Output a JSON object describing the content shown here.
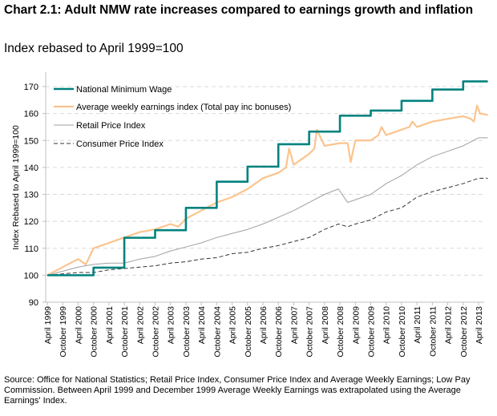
{
  "title": "Chart 2.1:  Adult NMW rate increases compared to earnings growth and inflation",
  "subtitle": "Index rebased to April 1999=100",
  "source": "Source:  Office for National Statistics; Retail Price Index, Consumer Price Index and Average Weekly Earnings; Low Pay Commission. Between April 1999 and December 1999 Average Weekly Earnings was extrapolated using the Average Earnings' Index.",
  "chart_data": {
    "type": "line",
    "ylabel": "Index Rebased to April 1999=100",
    "xlabel": "",
    "ylim": [
      90,
      175
    ],
    "yticks": [
      90,
      100,
      110,
      120,
      130,
      140,
      150,
      160,
      170
    ],
    "grid": "horizontal dashed",
    "legend_position": "top-left",
    "x_labels": [
      "April 1999",
      "October 1999",
      "April 2000",
      "October 2000",
      "April 2001",
      "October 2001",
      "April 2002",
      "October 2002",
      "April 2003",
      "October 2003",
      "April 2004",
      "October 2004",
      "April 2005",
      "October 2005",
      "April 2006",
      "October 2006",
      "April 2007",
      "October 2007",
      "April 2008",
      "October 2008",
      "April 2009",
      "October 2009",
      "April 2010",
      "October 2010",
      "April 2011",
      "October 2011",
      "April 2012",
      "October 2012",
      "April 2013"
    ],
    "x_range": [
      1999.25,
      2013.55
    ],
    "series": [
      {
        "name": "National Minimum Wage",
        "color": "#00827f",
        "style": "step",
        "x": [
          1999.25,
          2000.75,
          2001.75,
          2002.75,
          2003.75,
          2004.75,
          2005.75,
          2006.75,
          2007.75,
          2008.75,
          2009.75,
          2010.75,
          2011.75,
          2012.75,
          2013.55
        ],
        "values": [
          100,
          102.8,
          113.9,
          116.7,
          125,
          134.7,
          140.3,
          148.6,
          153.3,
          159.2,
          161.1,
          164.7,
          168.9,
          171.9,
          171.9
        ]
      },
      {
        "name": "Average weekly earnings index (Total pay inc bonuses)",
        "color": "#fbc48e",
        "style": "solid",
        "x": [
          1999.25,
          1999.75,
          2000.25,
          2000.5,
          2000.75,
          2001.25,
          2001.75,
          2002.25,
          2002.75,
          2003.25,
          2003.5,
          2003.75,
          2004.25,
          2004.75,
          2005.25,
          2005.75,
          2006.25,
          2006.75,
          2007.0,
          2007.1,
          2007.25,
          2007.75,
          2007.92,
          2008.0,
          2008.25,
          2008.75,
          2009.0,
          2009.1,
          2009.25,
          2009.75,
          2010.0,
          2010.1,
          2010.25,
          2010.75,
          2011.0,
          2011.1,
          2011.25,
          2011.75,
          2012.25,
          2012.75,
          2013.0,
          2013.1,
          2013.2,
          2013.3,
          2013.55
        ],
        "values": [
          100,
          103,
          106,
          104,
          110,
          112,
          114,
          116,
          117,
          119,
          118,
          121,
          124,
          127,
          129,
          132,
          136,
          138,
          140,
          147,
          141,
          145,
          147,
          154,
          148,
          149,
          149,
          142,
          150,
          150,
          152,
          155,
          152,
          154,
          155,
          157,
          155,
          157,
          158,
          159,
          158,
          157,
          163,
          160,
          159.5
        ]
      },
      {
        "name": "Retail Price Index",
        "color": "#a0a0a0",
        "style": "solid",
        "x": [
          1999.25,
          1999.75,
          2000.25,
          2000.75,
          2001.25,
          2001.75,
          2002.25,
          2002.75,
          2003.25,
          2003.75,
          2004.25,
          2004.75,
          2005.25,
          2005.75,
          2006.25,
          2006.75,
          2007.25,
          2007.75,
          2008.25,
          2008.7,
          2009.0,
          2009.25,
          2009.75,
          2010.25,
          2010.75,
          2011.25,
          2011.75,
          2012.25,
          2012.75,
          2013.25,
          2013.55
        ],
        "values": [
          100,
          101.5,
          103,
          104,
          104.5,
          104.5,
          106,
          107,
          109,
          110.5,
          112,
          114,
          115.5,
          117,
          119,
          121.5,
          124,
          127,
          130,
          132,
          127,
          128,
          130,
          134,
          137,
          141,
          144,
          146,
          148,
          151,
          151
        ]
      },
      {
        "name": "Consumer Price Index",
        "color": "#333333",
        "style": "dashed",
        "x": [
          1999.25,
          1999.75,
          2000.25,
          2000.75,
          2001.25,
          2001.75,
          2002.25,
          2002.75,
          2003.25,
          2003.75,
          2004.25,
          2004.75,
          2005.25,
          2005.75,
          2006.25,
          2006.75,
          2007.25,
          2007.75,
          2008.25,
          2008.7,
          2009.0,
          2009.25,
          2009.75,
          2010.25,
          2010.75,
          2011.25,
          2011.75,
          2012.25,
          2012.75,
          2013.25,
          2013.55
        ],
        "values": [
          100,
          100.5,
          101,
          101,
          102,
          102.5,
          103,
          103.5,
          104.5,
          105,
          106,
          106.5,
          108,
          108.5,
          110,
          111,
          112.5,
          114,
          117,
          119,
          118,
          119,
          120.5,
          123.5,
          125,
          129,
          131,
          132.5,
          134,
          136,
          136
        ]
      }
    ]
  }
}
